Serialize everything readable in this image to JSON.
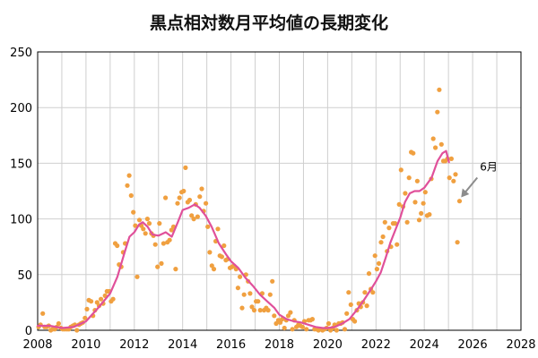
{
  "chart_data": {
    "type": "scatter",
    "title": "黒点相対数月平均値の長期変化",
    "xlim": [
      2008,
      2028
    ],
    "ylim": [
      0,
      250
    ],
    "x_ticks": [
      "2008",
      "2010",
      "2012",
      "2014",
      "2016",
      "2018",
      "2020",
      "2022",
      "2024",
      "2026",
      "2028"
    ],
    "y_ticks": [
      "0",
      "50",
      "100",
      "150",
      "200",
      "250"
    ],
    "grid": true,
    "colors": {
      "monthly": "#f0a040",
      "smoothed": "#e0509a",
      "arrow": "#8c8c8c",
      "grid": "#cfcfcf"
    },
    "annotation": {
      "text": "6月",
      "arrow_target": [
        2025.45,
        117
      ]
    },
    "series": [
      {
        "kind": "monthly",
        "points": [
          [
            2008.04,
            3
          ],
          [
            2008.12,
            5
          ],
          [
            2008.21,
            15
          ],
          [
            2008.29,
            3
          ],
          [
            2008.37,
            3
          ],
          [
            2008.46,
            4
          ],
          [
            2008.54,
            0
          ],
          [
            2008.62,
            1
          ],
          [
            2008.71,
            1
          ],
          [
            2008.79,
            3
          ],
          [
            2008.87,
            6
          ],
          [
            2008.96,
            2
          ],
          [
            2009.04,
            1
          ],
          [
            2009.12,
            1
          ],
          [
            2009.21,
            1
          ],
          [
            2009.29,
            1
          ],
          [
            2009.37,
            3
          ],
          [
            2009.46,
            4
          ],
          [
            2009.54,
            5
          ],
          [
            2009.62,
            0
          ],
          [
            2009.71,
            5
          ],
          [
            2009.79,
            6
          ],
          [
            2009.87,
            7
          ],
          [
            2009.96,
            11
          ],
          [
            2010.04,
            19
          ],
          [
            2010.12,
            27
          ],
          [
            2010.21,
            26
          ],
          [
            2010.29,
            13
          ],
          [
            2010.37,
            18
          ],
          [
            2010.46,
            25
          ],
          [
            2010.54,
            22
          ],
          [
            2010.62,
            28
          ],
          [
            2010.71,
            24
          ],
          [
            2010.79,
            31
          ],
          [
            2010.87,
            35
          ],
          [
            2010.96,
            35
          ],
          [
            2011.04,
            26
          ],
          [
            2011.12,
            28
          ],
          [
            2011.21,
            78
          ],
          [
            2011.29,
            76
          ],
          [
            2011.37,
            59
          ],
          [
            2011.46,
            57
          ],
          [
            2011.54,
            70
          ],
          [
            2011.62,
            78
          ],
          [
            2011.71,
            130
          ],
          [
            2011.79,
            139
          ],
          [
            2011.87,
            121
          ],
          [
            2011.96,
            106
          ],
          [
            2012.04,
            94
          ],
          [
            2012.12,
            48
          ],
          [
            2012.21,
            99
          ],
          [
            2012.29,
            94
          ],
          [
            2012.37,
            91
          ],
          [
            2012.46,
            87
          ],
          [
            2012.54,
            100
          ],
          [
            2012.62,
            96
          ],
          [
            2012.71,
            87
          ],
          [
            2012.79,
            85
          ],
          [
            2012.87,
            77
          ],
          [
            2012.96,
            57
          ],
          [
            2013.04,
            96
          ],
          [
            2013.12,
            60
          ],
          [
            2013.21,
            78
          ],
          [
            2013.29,
            119
          ],
          [
            2013.37,
            79
          ],
          [
            2013.46,
            81
          ],
          [
            2013.54,
            90
          ],
          [
            2013.62,
            93
          ],
          [
            2013.71,
            55
          ],
          [
            2013.79,
            114
          ],
          [
            2013.87,
            119
          ],
          [
            2013.96,
            124
          ],
          [
            2014.04,
            125
          ],
          [
            2014.12,
            146
          ],
          [
            2014.21,
            115
          ],
          [
            2014.29,
            117
          ],
          [
            2014.37,
            103
          ],
          [
            2014.46,
            100
          ],
          [
            2014.54,
            113
          ],
          [
            2014.62,
            102
          ],
          [
            2014.71,
            120
          ],
          [
            2014.79,
            127
          ],
          [
            2014.87,
            107
          ],
          [
            2014.96,
            114
          ],
          [
            2015.04,
            93
          ],
          [
            2015.12,
            70
          ],
          [
            2015.21,
            58
          ],
          [
            2015.29,
            55
          ],
          [
            2015.37,
            80
          ],
          [
            2015.46,
            91
          ],
          [
            2015.54,
            67
          ],
          [
            2015.62,
            66
          ],
          [
            2015.71,
            76
          ],
          [
            2015.79,
            63
          ],
          [
            2015.87,
            64
          ],
          [
            2015.96,
            56
          ],
          [
            2016.04,
            57
          ],
          [
            2016.12,
            58
          ],
          [
            2016.21,
            55
          ],
          [
            2016.29,
            38
          ],
          [
            2016.37,
            48
          ],
          [
            2016.46,
            20
          ],
          [
            2016.54,
            32
          ],
          [
            2016.62,
            50
          ],
          [
            2016.71,
            44
          ],
          [
            2016.79,
            33
          ],
          [
            2016.87,
            21
          ],
          [
            2016.96,
            18
          ],
          [
            2017.04,
            26
          ],
          [
            2017.12,
            26
          ],
          [
            2017.21,
            18
          ],
          [
            2017.29,
            33
          ],
          [
            2017.37,
            18
          ],
          [
            2017.46,
            20
          ],
          [
            2017.54,
            18
          ],
          [
            2017.62,
            32
          ],
          [
            2017.71,
            44
          ],
          [
            2017.79,
            13
          ],
          [
            2017.87,
            6
          ],
          [
            2017.96,
            9
          ],
          [
            2018.04,
            7
          ],
          [
            2018.12,
            10
          ],
          [
            2018.21,
            2
          ],
          [
            2018.29,
            9
          ],
          [
            2018.37,
            13
          ],
          [
            2018.46,
            16
          ],
          [
            2018.54,
            1
          ],
          [
            2018.62,
            9
          ],
          [
            2018.71,
            3
          ],
          [
            2018.79,
            5
          ],
          [
            2018.87,
            4
          ],
          [
            2018.96,
            3
          ],
          [
            2019.04,
            8
          ],
          [
            2019.12,
            1
          ],
          [
            2019.21,
            9
          ],
          [
            2019.29,
            9
          ],
          [
            2019.37,
            10
          ],
          [
            2019.46,
            1
          ],
          [
            2019.54,
            1
          ],
          [
            2019.62,
            0
          ],
          [
            2019.71,
            1
          ],
          [
            2019.79,
            0
          ],
          [
            2019.87,
            1
          ],
          [
            2019.96,
            2
          ],
          [
            2020.04,
            6
          ],
          [
            2020.12,
            0
          ],
          [
            2020.21,
            2
          ],
          [
            2020.29,
            5
          ],
          [
            2020.37,
            0
          ],
          [
            2020.46,
            6
          ],
          [
            2020.54,
            6
          ],
          [
            2020.62,
            7
          ],
          [
            2020.71,
            1
          ],
          [
            2020.79,
            15
          ],
          [
            2020.87,
            34
          ],
          [
            2020.96,
            23
          ],
          [
            2021.04,
            10
          ],
          [
            2021.12,
            8
          ],
          [
            2021.21,
            18
          ],
          [
            2021.29,
            24
          ],
          [
            2021.37,
            21
          ],
          [
            2021.46,
            25
          ],
          [
            2021.54,
            34
          ],
          [
            2021.62,
            22
          ],
          [
            2021.71,
            51
          ],
          [
            2021.79,
            37
          ],
          [
            2021.87,
            34
          ],
          [
            2021.96,
            67
          ],
          [
            2022.04,
            55
          ],
          [
            2022.12,
            60
          ],
          [
            2022.21,
            79
          ],
          [
            2022.29,
            84
          ],
          [
            2022.37,
            97
          ],
          [
            2022.46,
            71
          ],
          [
            2022.54,
            92
          ],
          [
            2022.62,
            75
          ],
          [
            2022.71,
            96
          ],
          [
            2022.79,
            96
          ],
          [
            2022.87,
            77
          ],
          [
            2022.96,
            113
          ],
          [
            2023.04,
            144
          ],
          [
            2023.12,
            111
          ],
          [
            2023.21,
            123
          ],
          [
            2023.29,
            97
          ],
          [
            2023.37,
            137
          ],
          [
            2023.46,
            160
          ],
          [
            2023.54,
            159
          ],
          [
            2023.62,
            115
          ],
          [
            2023.71,
            134
          ],
          [
            2023.79,
            99
          ],
          [
            2023.87,
            105
          ],
          [
            2023.96,
            114
          ],
          [
            2024.04,
            124
          ],
          [
            2024.12,
            103
          ],
          [
            2024.21,
            104
          ],
          [
            2024.29,
            136
          ],
          [
            2024.37,
            172
          ],
          [
            2024.46,
            164
          ],
          [
            2024.54,
            196
          ],
          [
            2024.62,
            216
          ],
          [
            2024.71,
            167
          ],
          [
            2024.79,
            152
          ],
          [
            2024.87,
            152
          ],
          [
            2024.96,
            154
          ],
          [
            2025.04,
            137
          ],
          [
            2025.12,
            154
          ],
          [
            2025.21,
            134
          ],
          [
            2025.29,
            140
          ],
          [
            2025.37,
            79
          ],
          [
            2025.46,
            116
          ]
        ]
      },
      {
        "kind": "smoothed",
        "points": [
          [
            2008.0,
            4
          ],
          [
            2008.5,
            4
          ],
          [
            2009.0,
            2
          ],
          [
            2009.5,
            3
          ],
          [
            2010.0,
            8
          ],
          [
            2010.5,
            20
          ],
          [
            2011.0,
            33
          ],
          [
            2011.3,
            48
          ],
          [
            2011.6,
            70
          ],
          [
            2011.8,
            84
          ],
          [
            2012.0,
            88
          ],
          [
            2012.2,
            95
          ],
          [
            2012.35,
            97
          ],
          [
            2012.55,
            93
          ],
          [
            2012.75,
            86
          ],
          [
            2013.0,
            85
          ],
          [
            2013.3,
            88
          ],
          [
            2013.55,
            84
          ],
          [
            2013.8,
            97
          ],
          [
            2014.0,
            108
          ],
          [
            2014.25,
            110
          ],
          [
            2014.5,
            113
          ],
          [
            2014.7,
            110
          ],
          [
            2014.95,
            103
          ],
          [
            2015.2,
            93
          ],
          [
            2015.5,
            78
          ],
          [
            2015.8,
            68
          ],
          [
            2016.0,
            62
          ],
          [
            2016.3,
            56
          ],
          [
            2016.6,
            47
          ],
          [
            2016.9,
            40
          ],
          [
            2017.2,
            32
          ],
          [
            2017.5,
            26
          ],
          [
            2017.8,
            20
          ],
          [
            2018.0,
            14
          ],
          [
            2018.3,
            10
          ],
          [
            2018.6,
            8
          ],
          [
            2018.9,
            7
          ],
          [
            2019.2,
            5
          ],
          [
            2019.5,
            3
          ],
          [
            2019.8,
            2
          ],
          [
            2020.0,
            2
          ],
          [
            2020.3,
            3
          ],
          [
            2020.6,
            6
          ],
          [
            2020.9,
            10
          ],
          [
            2021.2,
            18
          ],
          [
            2021.5,
            27
          ],
          [
            2021.8,
            37
          ],
          [
            2022.0,
            44
          ],
          [
            2022.2,
            52
          ],
          [
            2022.4,
            65
          ],
          [
            2022.6,
            79
          ],
          [
            2022.8,
            90
          ],
          [
            2023.0,
            101
          ],
          [
            2023.2,
            115
          ],
          [
            2023.4,
            123
          ],
          [
            2023.6,
            125
          ],
          [
            2023.8,
            125
          ],
          [
            2024.0,
            128
          ],
          [
            2024.3,
            137
          ],
          [
            2024.55,
            152
          ],
          [
            2024.75,
            159
          ],
          [
            2024.9,
            161
          ],
          [
            2025.02,
            151
          ]
        ]
      }
    ]
  }
}
